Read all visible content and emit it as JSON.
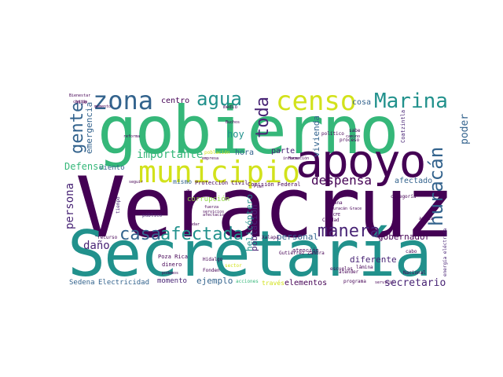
{
  "colors": {
    "purple": "#440154",
    "indigo": "#482475",
    "blue": "#33638d",
    "teal": "#21918c",
    "green": "#35b779",
    "lime": "#90d743",
    "yellow": "#d2e21b"
  },
  "words": [
    "Veracruz",
    "Secretaría",
    "gobierno",
    "apoyo",
    "municipio",
    "zona",
    "censo",
    "agua",
    "Marina",
    "afectada",
    "manera",
    "casa",
    "huracán",
    "gente",
    "toda",
    "despensa",
    "importante",
    "Defensa",
    "persona",
    "daño",
    "secretario",
    "gobernador",
    "hoy",
    "hora",
    "parte",
    "centro",
    "cosa",
    "poder",
    "vivienda",
    "emergencia",
    "helicóptero",
    "población",
    "personal",
    "diferente",
    "ejemplo",
    "elementos",
    "momento",
    "Sedena",
    "Electricidad",
    "afectado",
    "corrupción",
    "viento",
    "mismo",
    "Protección Civil",
    "Comisión Federal",
    "atención",
    "proceso",
    "escuelas",
    "lámina",
    "atender",
    "Poza Rica",
    "dinero",
    "Hidalgo",
    "Gutiérrez Zamora",
    "Fonden",
    "acciones",
    "través",
    "programa",
    "Nacional",
    "ayuda",
    "cabo",
    "energía eléctrica",
    "recurso",
    "público",
    "Ciudad",
    "Bienestar",
    "medio",
    "reforma",
    "político",
    "sabe",
    "camino",
    "comunicaciones",
    "categoría",
    "Coatzintla",
    "mañana",
    "Huracán Grace",
    "CFE",
    "Xalapa",
    "servicio",
    "hijo",
    "momento",
    "Tuxpan",
    "Buchos",
    "información",
    "seguir",
    "empresa",
    "población",
    "clase",
    "fuerza",
    "afectaciones",
    "ayudar",
    "podemos",
    "compra",
    "tiempo",
    "Plan",
    "Hacer",
    "impuesto área",
    "servicios",
    "sector",
    "comida"
  ]
}
